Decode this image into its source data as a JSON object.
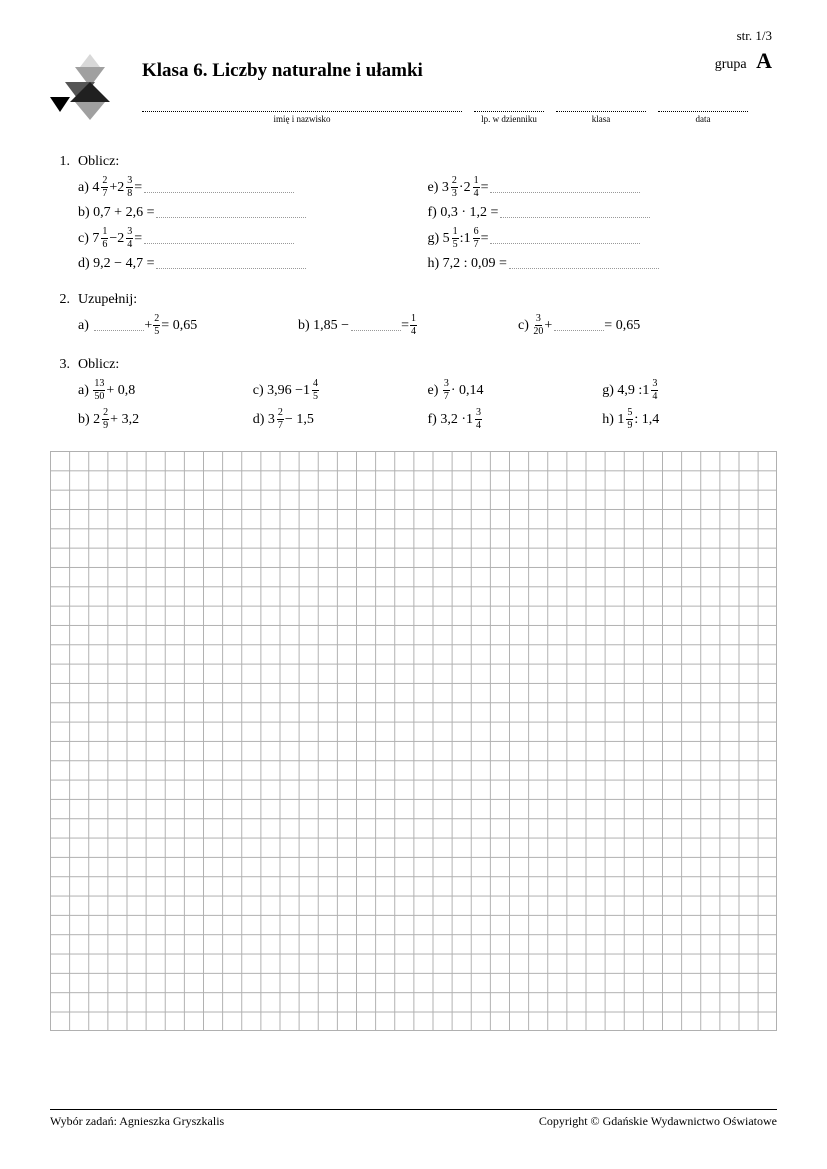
{
  "page_str": "str. 1/3",
  "grupa_label": "grupa",
  "grupa_letter": "A",
  "title": "Klasa 6. Liczby naturalne i ułamki",
  "info_fields": {
    "name": "imię i nazwisko",
    "lp": "lp. w dzienniku",
    "klasa": "klasa",
    "data": "data"
  },
  "logo_colors": {
    "light": "#d8d8d8",
    "mid": "#a0a0a0",
    "dark": "#555555",
    "darker": "#202020",
    "near_black": "#000000"
  },
  "ex1": {
    "num": "1.",
    "heading": "Oblicz:",
    "left": [
      {
        "l": "a)",
        "pre": "",
        "mixed": {
          "w": "4",
          "n": "2",
          "d": "7"
        },
        "mid": " + ",
        "mixed2": {
          "w": "2",
          "n": "3",
          "d": "8"
        },
        "post": " ="
      },
      {
        "l": "b)",
        "plain": "0,7 + 2,6 ="
      },
      {
        "l": "c)",
        "pre": "",
        "mixed": {
          "w": "7",
          "n": "1",
          "d": "6"
        },
        "mid": " − ",
        "mixed2": {
          "w": "2",
          "n": "3",
          "d": "4"
        },
        "post": " ="
      },
      {
        "l": "d)",
        "plain": "9,2 − 4,7 ="
      }
    ],
    "right": [
      {
        "l": "e)",
        "pre": "",
        "mixed": {
          "w": "3",
          "n": "2",
          "d": "3"
        },
        "mid": " · ",
        "mixed2": {
          "w": "2",
          "n": "1",
          "d": "4"
        },
        "post": " ="
      },
      {
        "l": "f)",
        "plain": " 0,3 · 1,2 ="
      },
      {
        "l": "g)",
        "pre": "",
        "mixed": {
          "w": "5",
          "n": "1",
          "d": "5"
        },
        "mid": " : ",
        "mixed2": {
          "w": "1",
          "n": "6",
          "d": "7"
        },
        "post": " ="
      },
      {
        "l": "h)",
        "plain": "7,2 : 0,09 ="
      }
    ]
  },
  "ex2": {
    "num": "2.",
    "heading": "Uzupełnij:",
    "a": {
      "l": "a)",
      "mid_op": " + ",
      "frac": {
        "n": "2",
        "d": "5"
      },
      "post": " = 0,65"
    },
    "b": {
      "l": "b)",
      "pre": "1,85 − ",
      "post_eq": " = ",
      "frac": {
        "n": "1",
        "d": "4"
      }
    },
    "c": {
      "l": "c)",
      "frac": {
        "n": "3",
        "d": "20"
      },
      "mid_op": " + ",
      "post": " = 0,65"
    }
  },
  "ex3": {
    "num": "3.",
    "heading": "Oblicz:",
    "rows": [
      [
        {
          "l": "a)",
          "frac": {
            "n": "13",
            "d": "50"
          },
          "post": " + 0,8"
        },
        {
          "l": "c)",
          "pre": "3,96 − ",
          "mixed": {
            "w": "1",
            "n": "4",
            "d": "5"
          }
        },
        {
          "l": "e)",
          "frac": {
            "n": "3",
            "d": "7"
          },
          "post": " · 0,14"
        },
        {
          "l": "g)",
          "pre": "4,9 : ",
          "mixed": {
            "w": "1",
            "n": "3",
            "d": "4"
          }
        }
      ],
      [
        {
          "l": "b)",
          "mixed": {
            "w": "2",
            "n": "2",
            "d": "9"
          },
          "post": " + 3,2"
        },
        {
          "l": "d)",
          "mixed": {
            "w": "3",
            "n": "2",
            "d": "7"
          },
          "post": " − 1,5"
        },
        {
          "l": "f)",
          "pre": " 3,2 · ",
          "mixed": {
            "w": "1",
            "n": "3",
            "d": "4"
          }
        },
        {
          "l": "h)",
          "mixed": {
            "w": "1",
            "n": "5",
            "d": "9"
          },
          "post": " : 1,4"
        }
      ]
    ]
  },
  "grid": {
    "cols": 38,
    "rows": 30,
    "line_color": "#b0b0b0",
    "background": "#ffffff"
  },
  "footer": {
    "left": "Wybór zadań: Agnieszka Gryszkalis",
    "right": "Copyright © Gdańskie Wydawnictwo Oświatowe"
  }
}
